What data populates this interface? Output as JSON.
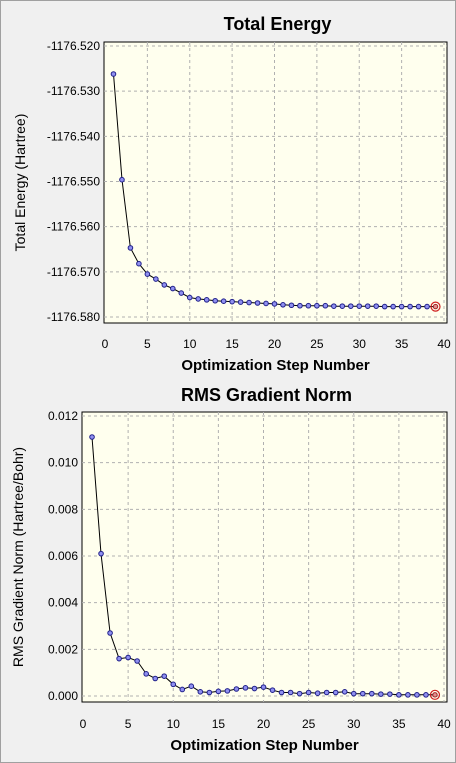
{
  "chart_data": [
    {
      "type": "line",
      "title": "Total Energy",
      "xlabel": "Optimization Step Number",
      "ylabel": "Total Energy (Hartree)",
      "xlim": [
        0,
        40
      ],
      "ylim": [
        -1176.58,
        -1176.52
      ],
      "xticks": [
        0,
        5,
        10,
        15,
        20,
        25,
        30,
        35,
        40
      ],
      "yticks": [
        -1176.52,
        -1176.53,
        -1176.54,
        -1176.55,
        -1176.56,
        -1176.57,
        -1176.58
      ],
      "xtick_labels": [
        "0",
        "5",
        "10",
        "15",
        "20",
        "25",
        "30",
        "35",
        "40"
      ],
      "ytick_labels": [
        "-1176.520",
        "-1176.530",
        "-1176.540",
        "-1176.550",
        "-1176.560",
        "-1176.570",
        "-1176.580"
      ],
      "grid": true,
      "x": [
        1,
        2,
        3,
        4,
        5,
        6,
        7,
        8,
        9,
        10,
        11,
        12,
        13,
        14,
        15,
        16,
        17,
        18,
        19,
        20,
        21,
        22,
        23,
        24,
        25,
        26,
        27,
        28,
        29,
        30,
        31,
        32,
        33,
        34,
        35,
        36,
        37,
        38,
        39
      ],
      "y": [
        -1176.5262,
        -1176.5496,
        -1176.5647,
        -1176.5682,
        -1176.5705,
        -1176.5716,
        -1176.5729,
        -1176.5737,
        -1176.5747,
        -1176.5757,
        -1176.576,
        -1176.5762,
        -1176.5764,
        -1176.5765,
        -1176.5766,
        -1176.5767,
        -1176.5768,
        -1176.5769,
        -1176.577,
        -1176.5771,
        -1176.5773,
        -1176.5774,
        -1176.5775,
        -1176.5775,
        -1176.5775,
        -1176.5775,
        -1176.5776,
        -1176.5776,
        -1176.5776,
        -1176.5776,
        -1176.5776,
        -1176.5776,
        -1176.5777,
        -1176.5777,
        -1176.5777,
        -1176.5777,
        -1176.5777,
        -1176.5777,
        -1176.5777
      ]
    },
    {
      "type": "line",
      "title": "RMS Gradient Norm",
      "xlabel": "Optimization Step Number",
      "ylabel": "RMS Gradient Norm (Hartree/Bohr)",
      "xlim": [
        0,
        40
      ],
      "ylim": [
        0,
        0.012
      ],
      "xticks": [
        0,
        5,
        10,
        15,
        20,
        25,
        30,
        35,
        40
      ],
      "yticks": [
        0,
        0.002,
        0.004,
        0.006,
        0.008,
        0.01,
        0.012
      ],
      "xtick_labels": [
        "0",
        "5",
        "10",
        "15",
        "20",
        "25",
        "30",
        "35",
        "40"
      ],
      "ytick_labels": [
        "0.000",
        "0.002",
        "0.004",
        "0.006",
        "0.008",
        "0.010",
        "0.012"
      ],
      "grid": true,
      "x": [
        1,
        2,
        3,
        4,
        5,
        6,
        7,
        8,
        9,
        10,
        11,
        12,
        13,
        14,
        15,
        16,
        17,
        18,
        19,
        20,
        21,
        22,
        23,
        24,
        25,
        26,
        27,
        28,
        29,
        30,
        31,
        32,
        33,
        34,
        35,
        36,
        37,
        38,
        39
      ],
      "y": [
        0.0111,
        0.0061,
        0.0027,
        0.0016,
        0.00165,
        0.0015,
        0.00095,
        0.00075,
        0.00085,
        0.0005,
        0.00028,
        0.00042,
        0.00018,
        0.00015,
        0.0002,
        0.00022,
        0.0003,
        0.00035,
        0.00032,
        0.00038,
        0.00025,
        0.00015,
        0.00015,
        0.0001,
        0.00015,
        0.00012,
        0.00015,
        0.00015,
        0.00018,
        0.0001,
        0.0001,
        0.0001,
        8e-05,
        8e-05,
        5e-05,
        5e-05,
        5e-05,
        5e-05,
        5e-05
      ]
    }
  ],
  "colors": {
    "plot_background": "#ffffee",
    "point_fill": "#9090f0",
    "point_stroke": "#20208a",
    "final_point": "#d02020"
  }
}
